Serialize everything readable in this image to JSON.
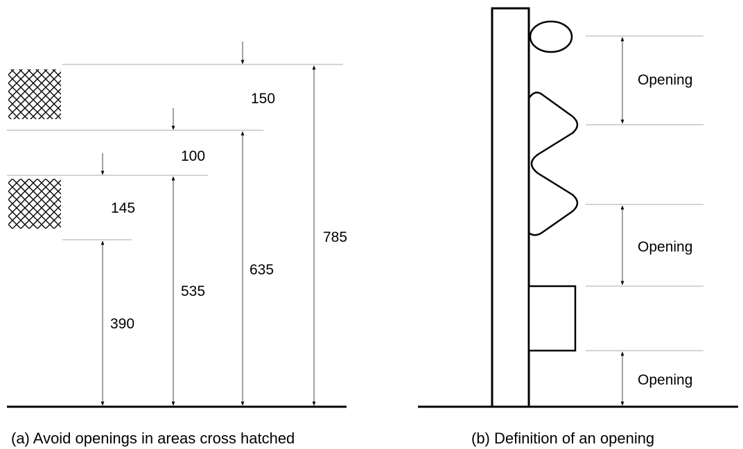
{
  "figure_a": {
    "dimensions": {
      "d150": "150",
      "d100": "100",
      "d145": "145",
      "d390": "390",
      "d535": "535",
      "d635": "635",
      "d785": "785"
    },
    "caption": "(a) Avoid openings in areas cross hatched"
  },
  "figure_b": {
    "opening_label": "Opening",
    "openings": [
      "Opening",
      "Opening",
      "Opening"
    ],
    "caption": "(b) Definition of an opening"
  }
}
